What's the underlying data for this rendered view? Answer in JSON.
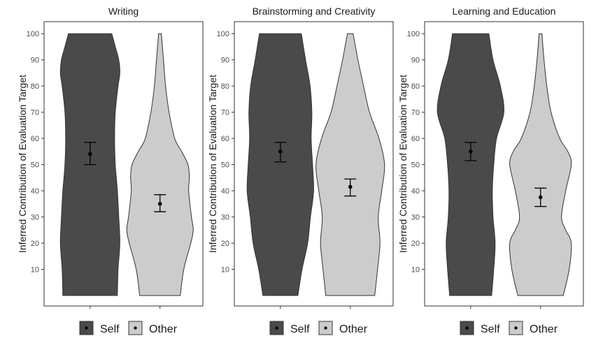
{
  "chart_data": [
    {
      "type": "violin",
      "title": "Writing",
      "ylabel": "Inferred Contribution of Evaluation Target",
      "ylim": [
        0,
        105
      ],
      "yticks": [
        "10",
        "20",
        "30",
        "40",
        "50",
        "60",
        "70",
        "80",
        "90",
        "100"
      ],
      "series": [
        {
          "name": "Self",
          "mean": 54,
          "ci": [
            50,
            58.5
          ],
          "density": [
            [
              0,
              0.78
            ],
            [
              10,
              0.8
            ],
            [
              20,
              0.85
            ],
            [
              30,
              0.82
            ],
            [
              40,
              0.78
            ],
            [
              50,
              0.72
            ],
            [
              60,
              0.7
            ],
            [
              70,
              0.72
            ],
            [
              80,
              0.8
            ],
            [
              85,
              0.85
            ],
            [
              90,
              0.82
            ],
            [
              95,
              0.72
            ],
            [
              100,
              0.62
            ]
          ]
        },
        {
          "name": "Other",
          "mean": 35,
          "ci": [
            32,
            38.5
          ],
          "density": [
            [
              0,
              0.58
            ],
            [
              10,
              0.68
            ],
            [
              20,
              0.88
            ],
            [
              25,
              0.95
            ],
            [
              30,
              0.9
            ],
            [
              40,
              0.82
            ],
            [
              45,
              0.84
            ],
            [
              50,
              0.8
            ],
            [
              55,
              0.62
            ],
            [
              60,
              0.42
            ],
            [
              70,
              0.26
            ],
            [
              80,
              0.16
            ],
            [
              90,
              0.1
            ],
            [
              100,
              0.04
            ]
          ]
        }
      ]
    },
    {
      "type": "violin",
      "title": "Brainstorming and Creativity",
      "ylabel": "Inferred Contribution of Evaluation Target",
      "ylim": [
        0,
        105
      ],
      "yticks": [
        "10",
        "20",
        "30",
        "40",
        "50",
        "60",
        "70",
        "80",
        "90",
        "100"
      ],
      "series": [
        {
          "name": "Self",
          "mean": 55,
          "ci": [
            51,
            58.5
          ],
          "density": [
            [
              0,
              0.5
            ],
            [
              10,
              0.62
            ],
            [
              20,
              0.78
            ],
            [
              30,
              0.86
            ],
            [
              40,
              0.95
            ],
            [
              50,
              0.92
            ],
            [
              60,
              0.88
            ],
            [
              70,
              0.9
            ],
            [
              80,
              0.85
            ],
            [
              90,
              0.72
            ],
            [
              100,
              0.6
            ]
          ]
        },
        {
          "name": "Other",
          "mean": 41.5,
          "ci": [
            38,
            44.5
          ],
          "density": [
            [
              0,
              0.7
            ],
            [
              10,
              0.78
            ],
            [
              20,
              0.85
            ],
            [
              30,
              0.8
            ],
            [
              40,
              0.9
            ],
            [
              50,
              0.98
            ],
            [
              60,
              0.82
            ],
            [
              70,
              0.55
            ],
            [
              80,
              0.38
            ],
            [
              90,
              0.22
            ],
            [
              100,
              0.08
            ]
          ]
        }
      ]
    },
    {
      "type": "violin",
      "title": "Learning and Education",
      "ylabel": "Inferred Contribution of Evaluation Target",
      "ylim": [
        0,
        105
      ],
      "yticks": [
        "10",
        "20",
        "30",
        "40",
        "50",
        "60",
        "70",
        "80",
        "90",
        "100"
      ],
      "series": [
        {
          "name": "Self",
          "mean": 55,
          "ci": [
            51.5,
            58.5
          ],
          "density": [
            [
              0,
              0.6
            ],
            [
              10,
              0.66
            ],
            [
              20,
              0.7
            ],
            [
              30,
              0.64
            ],
            [
              40,
              0.62
            ],
            [
              50,
              0.66
            ],
            [
              60,
              0.74
            ],
            [
              70,
              0.95
            ],
            [
              80,
              0.85
            ],
            [
              90,
              0.64
            ],
            [
              100,
              0.52
            ]
          ]
        },
        {
          "name": "Other",
          "mean": 37.5,
          "ci": [
            34,
            41
          ],
          "density": [
            [
              0,
              0.65
            ],
            [
              10,
              0.82
            ],
            [
              20,
              0.88
            ],
            [
              25,
              0.72
            ],
            [
              30,
              0.6
            ],
            [
              40,
              0.72
            ],
            [
              50,
              0.88
            ],
            [
              55,
              0.78
            ],
            [
              60,
              0.55
            ],
            [
              70,
              0.3
            ],
            [
              80,
              0.18
            ],
            [
              90,
              0.1
            ],
            [
              100,
              0.04
            ]
          ]
        }
      ]
    }
  ],
  "legend": {
    "self_label": "Self",
    "other_label": "Other"
  },
  "colors": {
    "self": "#4a4a4a",
    "other": "#cccccc"
  }
}
